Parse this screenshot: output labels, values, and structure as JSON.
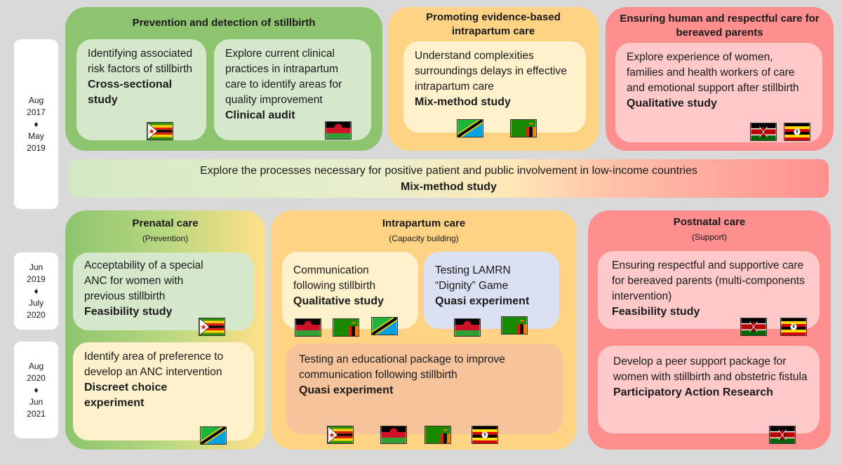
{
  "timeline": {
    "period1": [
      "Aug",
      "2017",
      "♦",
      "May",
      "2019"
    ],
    "period2": [
      "Jun",
      "2019",
      "♦",
      "July",
      "2020"
    ],
    "period3": [
      "Aug",
      "2020",
      "♦",
      "Jun",
      "2021"
    ]
  },
  "top": {
    "prevention": {
      "title": "Prevention and detection of stillbirth",
      "box1": {
        "text": "Identifying associated risk factors of stillbirth",
        "method": "Cross-sectional study"
      },
      "box2": {
        "text": "Explore current clinical practices in intrapartum care to identify areas for quality improvement",
        "method": "Clinical audit"
      }
    },
    "promoting": {
      "title": "Promoting evidence-based intrapartum care",
      "box": {
        "text": "Understand complexities surroundings delays in effective intrapartum care",
        "method": "Mix-method study"
      }
    },
    "bereaved": {
      "title": "Ensuring human and respectful care for bereaved parents",
      "box": {
        "text": "Explore experience of women, families and health workers of care and emotional support after stillbirth",
        "method": "Qualitative study"
      }
    }
  },
  "banner": {
    "text": "Explore the processes necessary for positive patient and public involvement in low-income countries",
    "method": "Mix-method study"
  },
  "prenatal": {
    "title": "Prenatal care",
    "subtitle": "(Prevention)",
    "box1": {
      "text": "Acceptability of a special ANC for women with previous stillbirth",
      "method": "Feasibility study"
    },
    "box2": {
      "text": "Identify area of preference to develop an ANC intervention",
      "method": "Discreet choice experiment"
    }
  },
  "intrapartum": {
    "title": "Intrapartum care",
    "subtitle": "(Capacity building)",
    "box1": {
      "text": "Communication following stillbirth",
      "method": "Qualitative study"
    },
    "box2": {
      "text": "Testing LAMRN “Dignity” Game",
      "method": "Quasi experiment"
    },
    "box3": {
      "text": "Testing an educational package to improve communication following stillbirth",
      "method": "Quasi experiment"
    }
  },
  "postnatal": {
    "title": "Postnatal care",
    "subtitle": "(Support)",
    "box1": {
      "text": "Ensuring respectful and supportive care for bereaved parents (multi-components intervention)",
      "method": "Feasibility study"
    },
    "box2": {
      "text": "Develop a peer support package for women with stillbirth and obstetric fistula",
      "method": "Participatory Action Research"
    }
  },
  "flag_icons": [
    "zimbabwe-flag-icon",
    "malawi-flag-icon",
    "tanzania-flag-icon",
    "zambia-flag-icon",
    "kenya-flag-icon",
    "uganda-flag-icon"
  ],
  "colors": {
    "green": "#8ec46f",
    "orange": "#ffd384",
    "red": "#ff8e8e",
    "background": "#d9d9d9"
  }
}
